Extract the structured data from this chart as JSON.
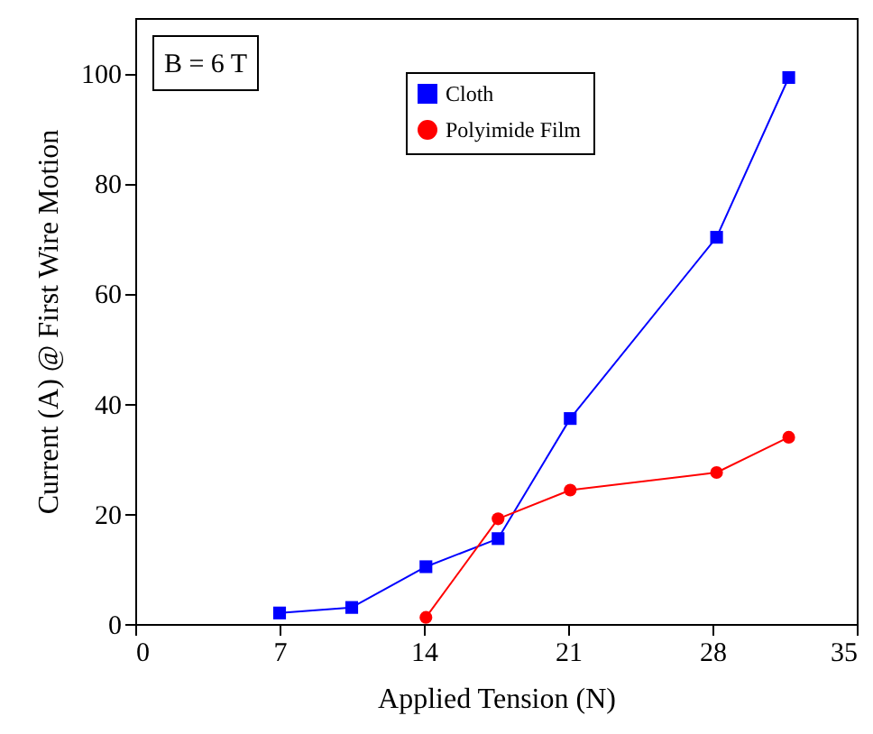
{
  "chart_data": {
    "type": "line",
    "xlabel": "Applied Tension (N)",
    "ylabel": "Current (A) @ First Wire Motion",
    "xlim": [
      0,
      35
    ],
    "xticks": [
      0,
      7,
      14,
      21,
      28,
      35
    ],
    "ylim": [
      0,
      110
    ],
    "yticks": [
      0,
      20,
      40,
      60,
      80,
      100
    ],
    "grid": false,
    "legend": "right",
    "line_style": "solid",
    "annotations": [
      "B = 6 T"
    ],
    "series": [
      {
        "name": "Cloth",
        "color": "#0000ff",
        "marker": "square",
        "x": [
          7,
          10.5,
          14.1,
          17.6,
          21.1,
          28.2,
          31.7
        ],
        "values": [
          2.0,
          3.0,
          10.4,
          15.5,
          37.3,
          70.2,
          99.2
        ]
      },
      {
        "name": "Polyimide Film",
        "color": "#ff0000",
        "marker": "circle",
        "x": [
          14.1,
          17.6,
          21.1,
          28.2,
          31.7
        ],
        "values": [
          1.2,
          19.1,
          24.3,
          27.5,
          33.9
        ]
      }
    ]
  }
}
